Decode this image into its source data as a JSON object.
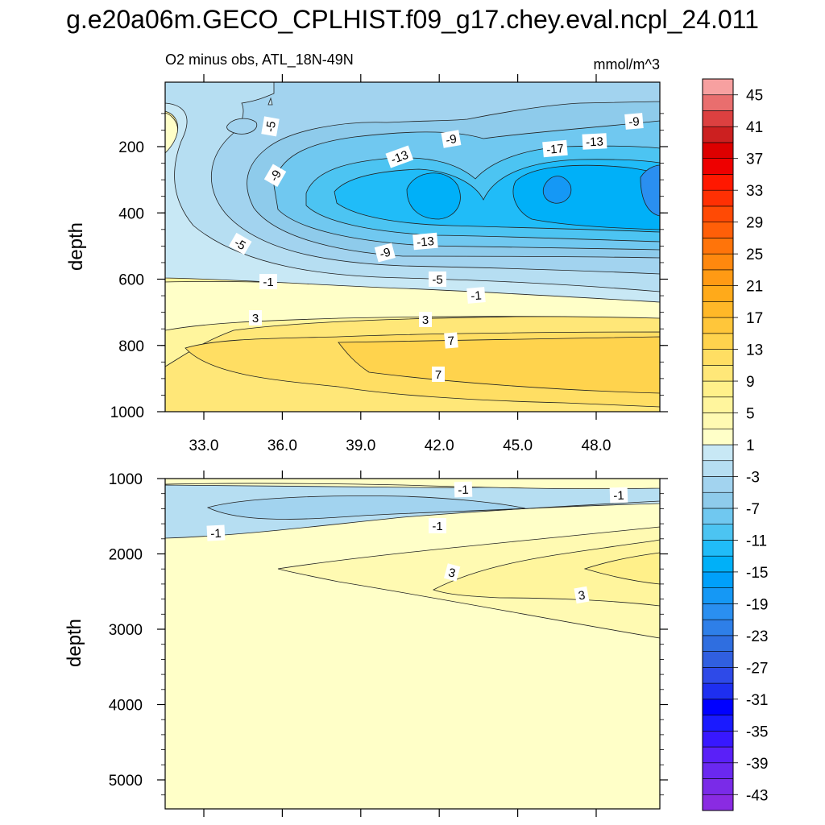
{
  "title": "g.e20a06m.GECO_CPLHIST.f09_g17.chey.eval.ncpl_24.011",
  "chart_data": {
    "type": "contour",
    "left_subtitle": "O2 minus obs, ATL_18N-49N",
    "units": "mmol/m^3",
    "colorbar": {
      "levels": [
        -45,
        -43,
        -41,
        -39,
        -37,
        -35,
        -33,
        -31,
        -29,
        -27,
        -25,
        -23,
        -21,
        -19,
        -17,
        -15,
        -13,
        -11,
        -9,
        -7,
        -5,
        -3,
        -1,
        1,
        3,
        5,
        7,
        9,
        11,
        13,
        15,
        17,
        19,
        21,
        23,
        25,
        27,
        29,
        31,
        33,
        35,
        37,
        39,
        41,
        43,
        45
      ],
      "labels": [
        "45",
        "41",
        "37",
        "33",
        "29",
        "25",
        "21",
        "17",
        "13",
        "9",
        "5",
        "1",
        "-3",
        "-7",
        "-11",
        "-15",
        "-19",
        "-23",
        "-27",
        "-31",
        "-35",
        "-39",
        "-43"
      ],
      "colors": [
        "#8a2be2",
        "#7a2be8",
        "#6a28f0",
        "#5a20f8",
        "#3818ff",
        "#1a1aff",
        "#0000ff",
        "#1e2ff0",
        "#2e4ae8",
        "#305fe0",
        "#2f6ee0",
        "#2e7fe8",
        "#2a8ff0",
        "#1598f5",
        "#00a0fa",
        "#00b0f8",
        "#20bcf8",
        "#4cc4f2",
        "#70c8f0",
        "#8ecbeb",
        "#a2d3ef",
        "#b6def2",
        "#c8e8f5",
        "#ffffc8",
        "#fffab2",
        "#fff59d",
        "#fff08a",
        "#ffe778",
        "#ffde63",
        "#ffd34d",
        "#ffc63a",
        "#ffb828",
        "#ffaa1a",
        "#ff9a14",
        "#ff880e",
        "#ff740a",
        "#ff5f08",
        "#ff4a05",
        "#ff3003",
        "#ff1800",
        "#ee0000",
        "#dd0000",
        "#cc2020",
        "#dc4040",
        "#e96e6e",
        "#f7a0a0"
      ]
    },
    "panels": [
      {
        "name": "upper",
        "ylabel": "depth",
        "y_ticks": [
          200,
          400,
          600,
          800,
          1000
        ],
        "x_ticks": [
          "33.0",
          "36.0",
          "39.0",
          "42.0",
          "45.0",
          "48.0"
        ],
        "contour_labels": [
          "-5",
          "-9",
          "-9",
          "-13",
          "-17",
          "-13",
          "-9",
          "-5",
          "-9",
          "-13",
          "-5",
          "-1",
          "-1",
          "3",
          "3",
          "7",
          "7"
        ]
      },
      {
        "name": "lower",
        "ylabel": "depth",
        "y_ticks": [
          1000,
          2000,
          3000,
          4000,
          5000
        ],
        "contour_labels": [
          "-1",
          "-1",
          "-1",
          "-1",
          "3",
          "3"
        ]
      }
    ]
  }
}
